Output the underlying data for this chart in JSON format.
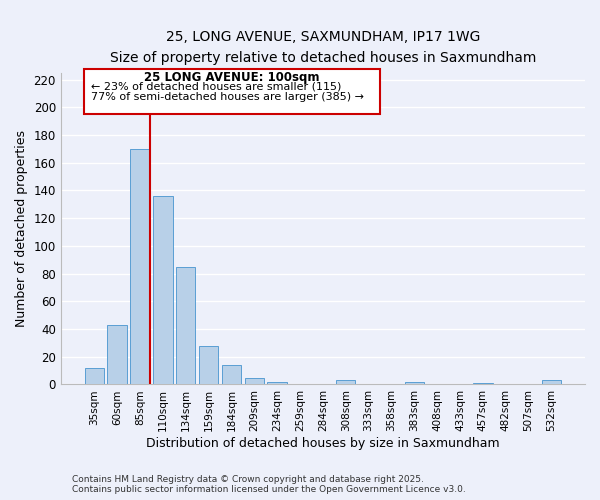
{
  "title_line1": "25, LONG AVENUE, SAXMUNDHAM, IP17 1WG",
  "title_line2": "Size of property relative to detached houses in Saxmundham",
  "xlabel": "Distribution of detached houses by size in Saxmundham",
  "ylabel": "Number of detached properties",
  "bar_labels": [
    "35sqm",
    "60sqm",
    "85sqm",
    "110sqm",
    "134sqm",
    "159sqm",
    "184sqm",
    "209sqm",
    "234sqm",
    "259sqm",
    "284sqm",
    "308sqm",
    "333sqm",
    "358sqm",
    "383sqm",
    "408sqm",
    "433sqm",
    "457sqm",
    "482sqm",
    "507sqm",
    "532sqm"
  ],
  "bar_values": [
    12,
    43,
    170,
    136,
    85,
    28,
    14,
    5,
    2,
    0,
    0,
    3,
    0,
    0,
    2,
    0,
    0,
    1,
    0,
    0,
    3
  ],
  "bar_color": "#b8d0e8",
  "bar_edge_color": "#5a9fd4",
  "reference_line_color": "#cc0000",
  "annotation_title": "25 LONG AVENUE: 100sqm",
  "annotation_line1": "← 23% of detached houses are smaller (115)",
  "annotation_line2": "77% of semi-detached houses are larger (385) →",
  "annotation_box_color": "#ffffff",
  "annotation_box_edge_color": "#cc0000",
  "ylim": [
    0,
    225
  ],
  "yticks": [
    0,
    20,
    40,
    60,
    80,
    100,
    120,
    140,
    160,
    180,
    200,
    220
  ],
  "background_color": "#edf0fa",
  "grid_color": "#ffffff",
  "footer_line1": "Contains HM Land Registry data © Crown copyright and database right 2025.",
  "footer_line2": "Contains public sector information licensed under the Open Government Licence v3.0."
}
